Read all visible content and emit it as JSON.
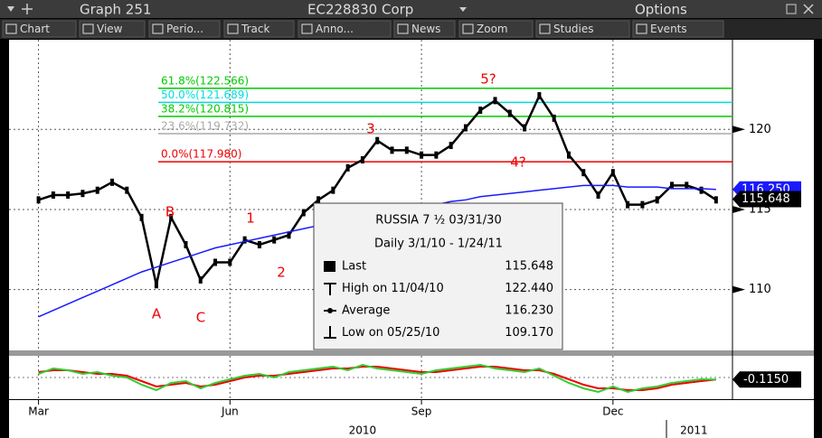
{
  "window": {
    "title": "Graph 251",
    "security": "EC228830 Corp",
    "options": "Options"
  },
  "toolbar": [
    "Chart",
    "View",
    "Perio...",
    "Track",
    "Anno...",
    "News",
    "Zoom",
    "Studies",
    "Events"
  ],
  "chart_data": {
    "type": "line",
    "series": [
      {
        "name": "Last",
        "color": "#000000",
        "values": [
          115.6,
          115.9,
          115.9,
          116.0,
          116.2,
          116.7,
          116.2,
          114.5,
          110.3,
          114.5,
          112.8,
          110.6,
          111.7,
          111.7,
          113.1,
          112.8,
          113.1,
          113.4,
          114.8,
          115.6,
          116.2,
          117.6,
          118.1,
          119.3,
          118.7,
          118.7,
          118.4,
          118.4,
          119.0,
          120.1,
          121.2,
          121.8,
          121.0,
          120.1,
          122.1,
          120.7,
          118.4,
          117.3,
          115.9,
          117.3,
          115.3,
          115.3,
          115.6,
          116.5,
          116.5,
          116.2,
          115.6
        ]
      },
      {
        "name": "Average",
        "color": "#1a1aff",
        "values": [
          108.3,
          108.7,
          109.1,
          109.5,
          109.9,
          110.3,
          110.7,
          111.1,
          111.4,
          111.7,
          112.0,
          112.3,
          112.6,
          112.8,
          113.0,
          113.2,
          113.4,
          113.6,
          113.8,
          114.0,
          114.2,
          114.4,
          114.6,
          114.8,
          115.0,
          115.1,
          115.2,
          115.3,
          115.5,
          115.6,
          115.8,
          115.9,
          116.0,
          116.1,
          116.2,
          116.3,
          116.4,
          116.5,
          116.5,
          116.5,
          116.4,
          116.4,
          116.4,
          116.3,
          116.3,
          116.3,
          116.25
        ]
      }
    ],
    "xlim": [
      -2,
      46.5
    ],
    "xticks": [
      {
        "value": 0,
        "label": "Mar"
      },
      {
        "value": 13,
        "label": "Jun"
      },
      {
        "value": 26,
        "label": "Sep"
      },
      {
        "value": 39,
        "label": "Dec"
      }
    ],
    "year_ticks": [
      {
        "value": 22,
        "label": "2010"
      },
      {
        "value": 44.5,
        "label": "2011"
      }
    ],
    "ylim": [
      106.2,
      125.6
    ],
    "yticks": [
      110,
      115,
      120
    ],
    "grid": true,
    "fib_levels": [
      {
        "label": "61.8%(122.566)",
        "value": 122.566,
        "color": "#00cc00"
      },
      {
        "label": "50.0%(121.689)",
        "value": 121.689,
        "color": "#00dddd"
      },
      {
        "label": "38.2%(120.815)",
        "value": 120.815,
        "color": "#00cc00"
      },
      {
        "label": "23.6%(119.732)",
        "value": 119.732,
        "color": "#aaaaaa"
      },
      {
        "label": "0.0%(117.980)",
        "value": 117.98,
        "color": "#ee0000"
      }
    ],
    "annotations": [
      "A",
      "B",
      "C",
      "1",
      "2",
      "3",
      "5?",
      "4?"
    ],
    "last_labels": [
      {
        "value": 116.25,
        "label": "116.250",
        "color": "#1a1aff"
      },
      {
        "value": 115.648,
        "label": "115.648",
        "color": "#000000"
      }
    ],
    "legend": {
      "title": "RUSSIA 7 ½ 03/31/30",
      "subtitle": "Daily 3/1/10 - 1/24/11",
      "last": "115.648",
      "high_label": "High on 11/04/10",
      "high": "122.440",
      "average": "116.230",
      "low_label": "Low on 05/25/10",
      "low": "109.170"
    },
    "oscillator": {
      "ylim": [
        -1,
        1
      ],
      "series": [
        {
          "color": "#ee0000",
          "values": [
            0.3,
            0.4,
            0.4,
            0.3,
            0.2,
            0.2,
            0.1,
            -0.2,
            -0.5,
            -0.4,
            -0.3,
            -0.5,
            -0.4,
            -0.2,
            0.0,
            0.1,
            0.1,
            0.2,
            0.3,
            0.4,
            0.5,
            0.5,
            0.6,
            0.6,
            0.5,
            0.4,
            0.3,
            0.3,
            0.4,
            0.5,
            0.6,
            0.6,
            0.5,
            0.4,
            0.4,
            0.2,
            -0.1,
            -0.4,
            -0.6,
            -0.6,
            -0.7,
            -0.7,
            -0.6,
            -0.4,
            -0.3,
            -0.2,
            -0.115
          ]
        },
        {
          "color": "#33cc33",
          "values": [
            0.2,
            0.5,
            0.4,
            0.2,
            0.3,
            0.1,
            0.0,
            -0.4,
            -0.7,
            -0.3,
            -0.2,
            -0.6,
            -0.3,
            -0.1,
            0.1,
            0.2,
            0.0,
            0.3,
            0.4,
            0.5,
            0.6,
            0.4,
            0.7,
            0.5,
            0.4,
            0.3,
            0.2,
            0.4,
            0.5,
            0.6,
            0.7,
            0.5,
            0.4,
            0.3,
            0.5,
            0.1,
            -0.3,
            -0.6,
            -0.8,
            -0.5,
            -0.8,
            -0.6,
            -0.5,
            -0.3,
            -0.2,
            -0.1,
            -0.115
          ]
        }
      ],
      "last_label": {
        "value": -0.115,
        "label": "-0.1150"
      }
    }
  }
}
